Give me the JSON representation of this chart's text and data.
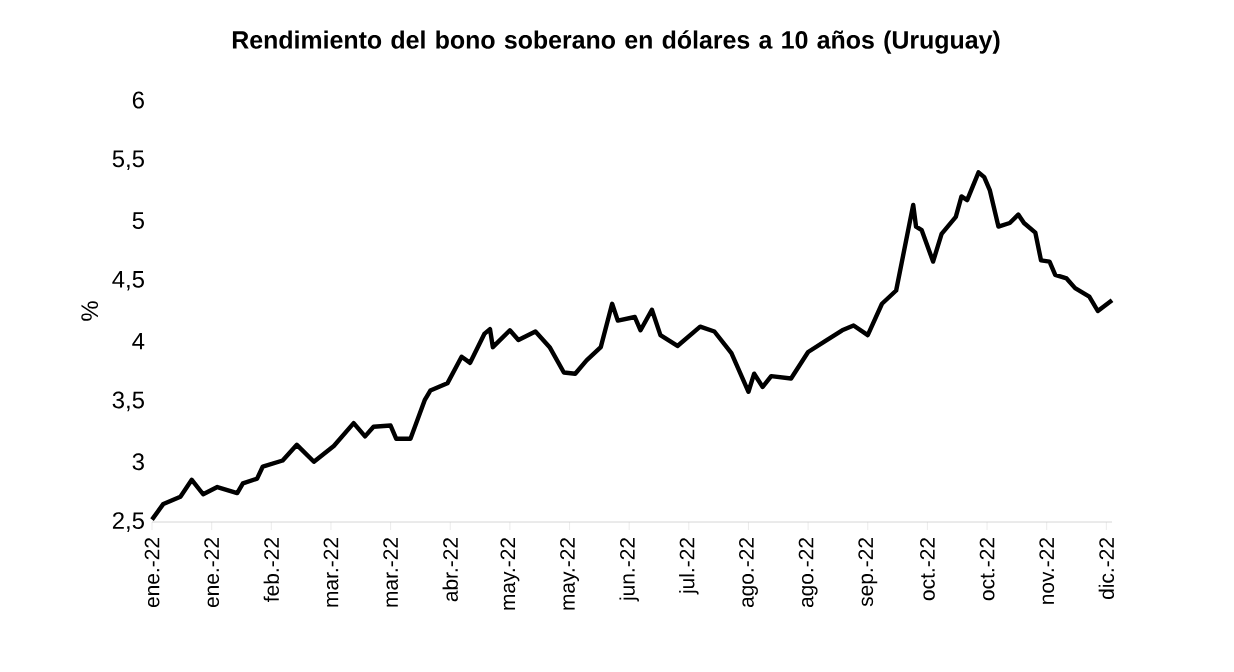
{
  "chart_data": {
    "type": "line",
    "title": "Rendimiento del bono soberano en dólares a 10 años (Uruguay)",
    "ylabel": "%",
    "x": [
      "2022-01-03",
      "2022-01-07",
      "2022-01-13",
      "2022-01-17",
      "2022-01-21",
      "2022-01-26",
      "2022-02-02",
      "2022-02-04",
      "2022-02-09",
      "2022-02-11",
      "2022-02-18",
      "2022-02-23",
      "2022-03-01",
      "2022-03-08",
      "2022-03-15",
      "2022-03-19",
      "2022-03-22",
      "2022-03-28",
      "2022-03-30",
      "2022-04-04",
      "2022-04-09",
      "2022-04-11",
      "2022-04-17",
      "2022-04-22",
      "2022-04-25",
      "2022-04-30",
      "2022-05-02",
      "2022-05-03",
      "2022-05-09",
      "2022-05-12",
      "2022-05-18",
      "2022-05-23",
      "2022-05-28",
      "2022-06-01",
      "2022-06-05",
      "2022-06-10",
      "2022-06-14",
      "2022-06-16",
      "2022-06-22",
      "2022-06-24",
      "2022-06-28",
      "2022-07-01",
      "2022-07-07",
      "2022-07-15",
      "2022-07-20",
      "2022-07-26",
      "2022-08-01",
      "2022-08-03",
      "2022-08-06",
      "2022-08-09",
      "2022-08-16",
      "2022-08-22",
      "2022-08-28",
      "2022-09-03",
      "2022-09-07",
      "2022-09-12",
      "2022-09-17",
      "2022-09-22",
      "2022-09-28",
      "2022-09-29",
      "2022-10-01",
      "2022-10-05",
      "2022-10-08",
      "2022-10-13",
      "2022-10-15",
      "2022-10-17",
      "2022-10-21",
      "2022-10-23",
      "2022-10-25",
      "2022-10-28",
      "2022-11-01",
      "2022-11-04",
      "2022-11-06",
      "2022-11-10",
      "2022-11-12",
      "2022-11-15",
      "2022-11-17",
      "2022-11-21",
      "2022-11-24",
      "2022-11-29",
      "2022-12-02",
      "2022-12-07"
    ],
    "values": [
      2.52,
      2.65,
      2.71,
      2.85,
      2.73,
      2.79,
      2.74,
      2.82,
      2.86,
      2.96,
      3.01,
      3.14,
      3.0,
      3.13,
      3.32,
      3.21,
      3.29,
      3.3,
      3.19,
      3.19,
      3.51,
      3.59,
      3.65,
      3.87,
      3.82,
      4.06,
      4.1,
      3.95,
      4.09,
      4.01,
      4.08,
      3.95,
      3.74,
      3.73,
      3.84,
      3.95,
      4.31,
      4.17,
      4.2,
      4.09,
      4.26,
      4.05,
      3.96,
      4.12,
      4.08,
      3.9,
      3.58,
      3.73,
      3.62,
      3.71,
      3.69,
      3.91,
      4.0,
      4.09,
      4.13,
      4.05,
      4.31,
      4.42,
      5.13,
      4.95,
      4.92,
      4.66,
      4.89,
      5.03,
      5.2,
      5.17,
      5.4,
      5.36,
      5.25,
      4.95,
      4.98,
      5.05,
      4.98,
      4.9,
      4.67,
      4.66,
      4.55,
      4.52,
      4.44,
      4.37,
      4.25,
      4.34
    ],
    "color": "#000000",
    "line_style": "solid",
    "marker": "none",
    "grid": false,
    "xlim": [
      "2022-01-03",
      "2022-12-07"
    ],
    "xticks": [
      {
        "value": "2022-01-03",
        "label": "ene.-22"
      },
      {
        "value": "2022-01-24",
        "label": "ene.-22"
      },
      {
        "value": "2022-02-14",
        "label": "feb.-22"
      },
      {
        "value": "2022-03-07",
        "label": "mar.-22"
      },
      {
        "value": "2022-03-28",
        "label": "mar.-22"
      },
      {
        "value": "2022-04-18",
        "label": "abr.-22"
      },
      {
        "value": "2022-05-09",
        "label": "may.-22"
      },
      {
        "value": "2022-05-30",
        "label": "may.-22"
      },
      {
        "value": "2022-06-20",
        "label": "jun.-22"
      },
      {
        "value": "2022-07-11",
        "label": "jul.-22"
      },
      {
        "value": "2022-08-01",
        "label": "ago.-22"
      },
      {
        "value": "2022-08-22",
        "label": "ago.-22"
      },
      {
        "value": "2022-09-12",
        "label": "sep.-22"
      },
      {
        "value": "2022-10-03",
        "label": "oct.-22"
      },
      {
        "value": "2022-10-24",
        "label": "oct.-22"
      },
      {
        "value": "2022-11-14",
        "label": "nov.-22"
      },
      {
        "value": "2022-12-05",
        "label": "dic.-22"
      }
    ],
    "ylim": [
      2.5,
      6
    ],
    "yticks": [
      {
        "value": 2.5,
        "label": "2,5"
      },
      {
        "value": 3,
        "label": "3"
      },
      {
        "value": 3.5,
        "label": "3,5"
      },
      {
        "value": 4,
        "label": "4"
      },
      {
        "value": 4.5,
        "label": "4,5"
      },
      {
        "value": 5,
        "label": "5"
      },
      {
        "value": 5.5,
        "label": "5,5"
      },
      {
        "value": 6,
        "label": "6"
      }
    ]
  }
}
